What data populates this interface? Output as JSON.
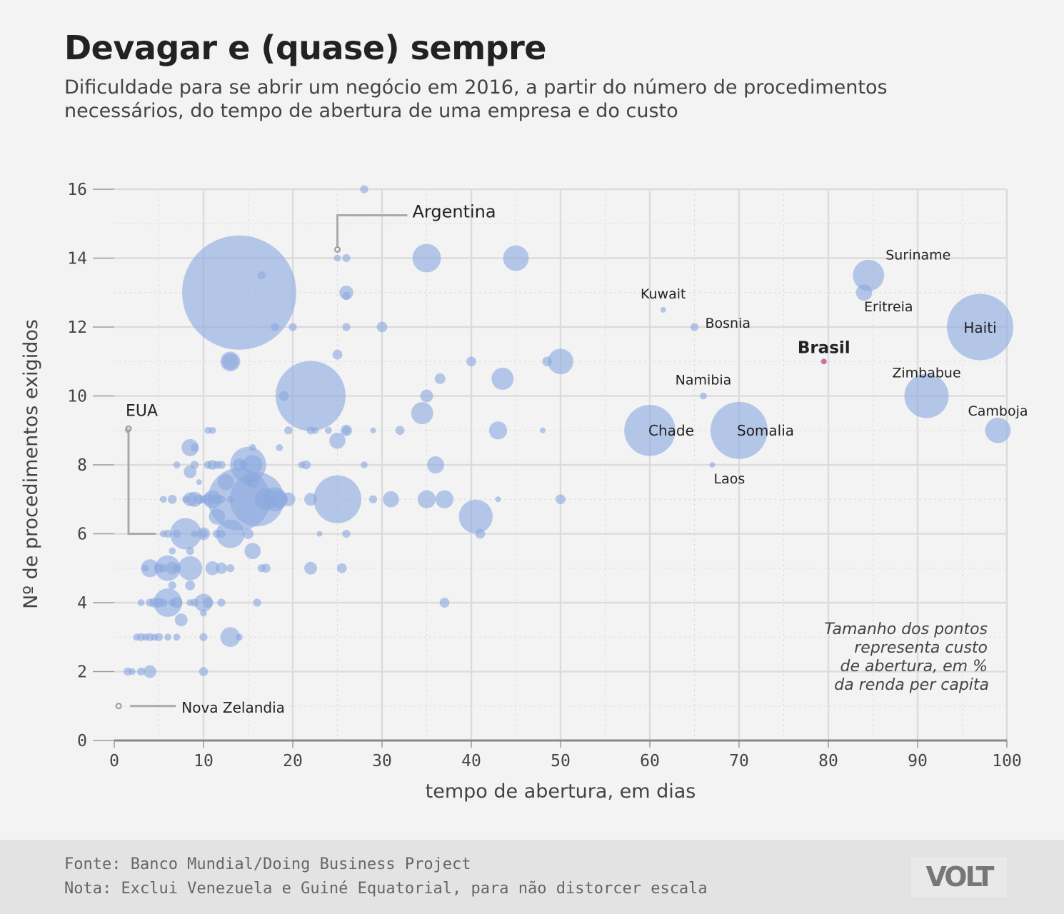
{
  "title": "Devagar e (quase) sempre",
  "subtitle": "Dificuldade para se abrir um negócio em 2016, a partir do número de procedimentos necessários, do tempo de abertura de uma empresa e do custo",
  "footer": {
    "source": "Fonte: Banco Mundial/Doing Business Project",
    "note": "Nota: Exclui Venezuela e Guiné Equatorial, para não distorcer escala",
    "logo": "VOLT"
  },
  "colors": {
    "point": "#8aa9e0",
    "highlight": "#c0679a",
    "grid": "#dcdcdc",
    "axis": "#999999",
    "leader": "#aaaaaa"
  },
  "chart_data": {
    "type": "scatter",
    "xlabel": "tempo de abertura, em dias",
    "ylabel": "Nº de procedimentos exigidos",
    "xlim": [
      0,
      100
    ],
    "ylim": [
      0,
      16
    ],
    "x_ticks": [
      "0",
      "10",
      "20",
      "30",
      "40",
      "50",
      "60",
      "70",
      "80",
      "90",
      "100"
    ],
    "y_ticks": [
      "0",
      "2",
      "4",
      "6",
      "8",
      "10",
      "12",
      "14",
      "16"
    ],
    "grid": true,
    "size_note": "Tamanho dos pontos representa custo de abertura, em % da renda per capita",
    "size_note_lines": [
      "Tamanho dos pontos",
      "representa custo",
      "de abertura, em %",
      "da renda per capita"
    ],
    "labeled_points": [
      {
        "label": "Argentina",
        "x": 25,
        "y": 14.25,
        "size": 0.5,
        "leader": true,
        "bold": false
      },
      {
        "label": "EUA",
        "x": 1.6,
        "y": 9.05,
        "size": 0.5,
        "leader": true,
        "bold": false
      },
      {
        "label": "Nova Zelandia",
        "x": 0.5,
        "y": 1,
        "size": 0.5,
        "leader": true,
        "bold": false
      },
      {
        "label": "Kuwait",
        "x": 61.5,
        "y": 12.5,
        "size": 1,
        "leader": false,
        "bold": false
      },
      {
        "label": "Bosnia",
        "x": 65,
        "y": 12,
        "size": 2,
        "leader": false,
        "bold": false
      },
      {
        "label": "Suriname",
        "x": 84.5,
        "y": 13.5,
        "size": 30,
        "leader": false,
        "bold": false
      },
      {
        "label": "Eritreia",
        "x": 84,
        "y": 13,
        "size": 8,
        "leader": false,
        "bold": false
      },
      {
        "label": "Haiti",
        "x": 97,
        "y": 12,
        "size": 135,
        "leader": false,
        "bold": false
      },
      {
        "label": "Brasil",
        "x": 79.5,
        "y": 11,
        "size": 1,
        "leader": false,
        "bold": true
      },
      {
        "label": "Namibia",
        "x": 66,
        "y": 10,
        "size": 1.5,
        "leader": false,
        "bold": false
      },
      {
        "label": "Zimbabue",
        "x": 91,
        "y": 10,
        "size": 60,
        "leader": false,
        "bold": false
      },
      {
        "label": "Camboja",
        "x": 99,
        "y": 9,
        "size": 20,
        "leader": false,
        "bold": false
      },
      {
        "label": "Chade",
        "x": 60,
        "y": 9,
        "size": 80,
        "leader": false,
        "bold": false
      },
      {
        "label": "Somalia",
        "x": 70,
        "y": 9,
        "size": 100,
        "leader": false,
        "bold": false
      },
      {
        "label": "Laos",
        "x": 67,
        "y": 8,
        "size": 1,
        "leader": false,
        "bold": false
      }
    ],
    "points": [
      [
        28,
        16,
        2
      ],
      [
        25,
        14,
        1.5
      ],
      [
        26,
        14,
        2
      ],
      [
        35,
        14,
        25
      ],
      [
        45,
        14,
        20
      ],
      [
        16.5,
        13.5,
        2
      ],
      [
        14,
        13,
        400
      ],
      [
        26,
        13,
        6
      ],
      [
        26,
        12.9,
        2
      ],
      [
        18,
        12,
        2
      ],
      [
        20,
        12,
        2
      ],
      [
        26,
        12,
        2
      ],
      [
        30,
        12,
        3.5
      ],
      [
        13,
        11,
        12
      ],
      [
        13,
        11,
        8
      ],
      [
        25,
        11.2,
        3
      ],
      [
        40,
        11,
        3
      ],
      [
        48.5,
        11,
        3
      ],
      [
        50,
        11,
        20
      ],
      [
        36.5,
        10.5,
        3.5
      ],
      [
        43.5,
        10.5,
        15
      ],
      [
        22,
        10,
        150
      ],
      [
        19,
        10,
        3
      ],
      [
        35,
        10,
        5
      ],
      [
        34.5,
        9.5,
        15
      ],
      [
        1.5,
        9,
        0.5
      ],
      [
        10.5,
        9,
        1.5
      ],
      [
        11,
        9,
        1.5
      ],
      [
        19.5,
        9,
        2
      ],
      [
        22,
        9,
        2
      ],
      [
        22.5,
        9,
        1.5
      ],
      [
        24,
        9,
        1.5
      ],
      [
        26,
        9,
        4
      ],
      [
        26,
        9,
        2
      ],
      [
        29,
        9,
        1
      ],
      [
        32,
        9,
        2.5
      ],
      [
        43,
        9,
        10
      ],
      [
        48,
        9,
        1
      ],
      [
        8.5,
        8.5,
        9
      ],
      [
        9,
        8.5,
        2
      ],
      [
        15.5,
        8.5,
        1.5
      ],
      [
        18.5,
        8.5,
        1.5
      ],
      [
        25,
        8.7,
        8
      ],
      [
        7,
        8,
        1.5
      ],
      [
        9,
        8,
        2
      ],
      [
        10.5,
        8,
        2
      ],
      [
        11,
        8,
        3
      ],
      [
        11.5,
        8,
        2
      ],
      [
        12,
        8,
        2
      ],
      [
        14,
        8,
        5
      ],
      [
        14.5,
        8,
        2
      ],
      [
        15,
        8,
        40
      ],
      [
        15.5,
        8,
        12
      ],
      [
        21,
        8,
        1.5
      ],
      [
        21.5,
        8,
        2.5
      ],
      [
        28,
        8,
        1.5
      ],
      [
        36,
        8,
        9
      ],
      [
        8.5,
        7.8,
        5
      ],
      [
        12.5,
        7.5,
        8
      ],
      [
        9.5,
        7.5,
        1
      ],
      [
        15,
        7.5,
        2
      ],
      [
        15.5,
        7.5,
        4
      ],
      [
        5.5,
        7,
        1.5
      ],
      [
        6.5,
        7,
        2.5
      ],
      [
        8,
        7,
        1.5
      ],
      [
        8.5,
        7,
        6
      ],
      [
        9,
        7,
        7
      ],
      [
        9.5,
        7,
        3
      ],
      [
        10,
        7,
        2
      ],
      [
        10.5,
        7,
        4
      ],
      [
        11,
        7,
        10
      ],
      [
        11.5,
        7,
        3
      ],
      [
        12,
        7,
        2
      ],
      [
        13,
        7,
        1.5
      ],
      [
        14,
        7,
        120
      ],
      [
        16,
        7,
        90
      ],
      [
        17,
        7,
        15
      ],
      [
        18,
        7,
        18
      ],
      [
        18.5,
        7,
        9
      ],
      [
        19.5,
        7,
        6
      ],
      [
        22,
        7,
        5
      ],
      [
        25,
        7,
        70
      ],
      [
        29,
        7,
        2
      ],
      [
        31,
        7,
        8
      ],
      [
        35,
        7,
        10
      ],
      [
        37,
        7,
        10
      ],
      [
        43,
        7,
        1
      ],
      [
        50,
        7,
        3
      ],
      [
        11.5,
        6.5,
        8
      ],
      [
        40.5,
        6.5,
        35
      ],
      [
        5.5,
        6,
        1.5
      ],
      [
        6,
        6,
        2
      ],
      [
        7,
        6,
        2
      ],
      [
        8,
        6,
        30
      ],
      [
        9,
        6,
        1.5
      ],
      [
        10,
        6,
        5
      ],
      [
        10,
        6,
        2
      ],
      [
        11.5,
        6,
        2
      ],
      [
        12,
        6,
        2
      ],
      [
        13,
        6,
        25
      ],
      [
        15,
        6,
        3.5
      ],
      [
        23,
        6,
        1
      ],
      [
        26,
        6,
        2
      ],
      [
        41,
        6,
        3
      ],
      [
        6.5,
        5.5,
        1.5
      ],
      [
        8.5,
        5.5,
        2
      ],
      [
        15.5,
        5.5,
        8
      ],
      [
        3.5,
        5,
        1.5
      ],
      [
        4,
        5,
        10
      ],
      [
        5,
        5,
        3
      ],
      [
        5.5,
        5,
        2
      ],
      [
        6,
        5,
        20
      ],
      [
        6.5,
        5,
        5
      ],
      [
        7,
        5,
        2
      ],
      [
        8.5,
        5,
        18
      ],
      [
        11,
        5,
        6
      ],
      [
        12,
        5,
        4
      ],
      [
        13,
        5,
        2
      ],
      [
        16.5,
        5,
        2
      ],
      [
        17,
        5,
        2.5
      ],
      [
        22,
        5,
        5
      ],
      [
        25.5,
        5,
        3
      ],
      [
        6.5,
        4.5,
        2
      ],
      [
        8.5,
        4.5,
        3
      ],
      [
        3,
        4,
        1.5
      ],
      [
        4,
        4,
        2
      ],
      [
        4.5,
        4,
        3
      ],
      [
        5,
        4,
        3
      ],
      [
        5.5,
        4,
        2
      ],
      [
        6,
        4,
        25
      ],
      [
        6.5,
        4,
        1.5
      ],
      [
        7,
        4,
        4
      ],
      [
        8.5,
        4,
        1.5
      ],
      [
        9,
        4,
        2
      ],
      [
        10,
        4,
        10
      ],
      [
        10.5,
        4,
        3.5
      ],
      [
        12,
        4,
        2
      ],
      [
        16,
        4,
        2
      ],
      [
        37,
        4,
        3
      ],
      [
        10,
        3.7,
        1.5
      ],
      [
        7.5,
        3.5,
        5
      ],
      [
        2.5,
        3,
        1.5
      ],
      [
        3,
        3,
        2
      ],
      [
        3.5,
        3,
        1.5
      ],
      [
        4,
        3,
        2
      ],
      [
        4.5,
        3,
        1.5
      ],
      [
        5,
        3,
        2
      ],
      [
        6,
        3,
        1.5
      ],
      [
        7,
        3,
        1.5
      ],
      [
        10,
        3,
        2
      ],
      [
        13,
        3,
        12
      ],
      [
        14,
        3,
        1.5
      ],
      [
        1.5,
        2,
        2
      ],
      [
        2,
        2,
        1.5
      ],
      [
        3,
        2,
        2
      ],
      [
        4,
        2,
        5
      ],
      [
        10,
        2,
        2.5
      ]
    ]
  }
}
